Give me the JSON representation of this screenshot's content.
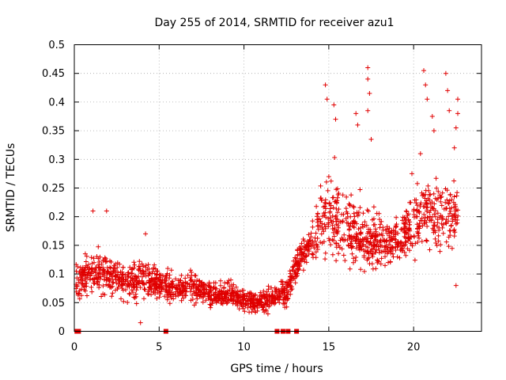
{
  "chart_data": {
    "type": "scatter",
    "title": "Day 255 of 2014, SRMTID for receiver azu1",
    "xlabel": "GPS time / hours",
    "ylabel": "SRMTID / TECUs",
    "xlim": [
      0,
      24
    ],
    "ylim": [
      0,
      0.5
    ],
    "xticks": [
      0,
      5,
      10,
      15,
      20
    ],
    "xtick_labels": [
      "0",
      "5",
      "10",
      "15",
      "20"
    ],
    "yticks": [
      0,
      0.05,
      0.1,
      0.15,
      0.2,
      0.25,
      0.3,
      0.35,
      0.4,
      0.45,
      0.5
    ],
    "ytick_labels": [
      "0",
      "0.05",
      "0.1",
      "0.15",
      "0.2",
      "0.25",
      "0.3",
      "0.35",
      "0.4",
      "0.45",
      "0.5"
    ],
    "grid": true,
    "marker": "+",
    "series": [
      {
        "name": "SRMTID",
        "color": "#e00000",
        "description": "dense scatter of SRMTID values across the day",
        "envelope": [
          {
            "x": 0.2,
            "median": 0.09,
            "spread": 0.04
          },
          {
            "x": 1.0,
            "median": 0.1,
            "spread": 0.045
          },
          {
            "x": 2.0,
            "median": 0.1,
            "spread": 0.04
          },
          {
            "x": 3.0,
            "median": 0.085,
            "spread": 0.035
          },
          {
            "x": 4.0,
            "median": 0.09,
            "spread": 0.04
          },
          {
            "x": 5.0,
            "median": 0.085,
            "spread": 0.035
          },
          {
            "x": 6.0,
            "median": 0.075,
            "spread": 0.03
          },
          {
            "x": 7.0,
            "median": 0.08,
            "spread": 0.035
          },
          {
            "x": 8.0,
            "median": 0.065,
            "spread": 0.025
          },
          {
            "x": 9.0,
            "median": 0.065,
            "spread": 0.025
          },
          {
            "x": 10.0,
            "median": 0.055,
            "spread": 0.025
          },
          {
            "x": 11.0,
            "median": 0.05,
            "spread": 0.02
          },
          {
            "x": 11.8,
            "median": 0.06,
            "spread": 0.025
          },
          {
            "x": 12.5,
            "median": 0.07,
            "spread": 0.03
          },
          {
            "x": 13.3,
            "median": 0.13,
            "spread": 0.035
          },
          {
            "x": 14.0,
            "median": 0.15,
            "spread": 0.045
          },
          {
            "x": 14.7,
            "median": 0.2,
            "spread": 0.09
          },
          {
            "x": 15.5,
            "median": 0.2,
            "spread": 0.09
          },
          {
            "x": 16.5,
            "median": 0.17,
            "spread": 0.07
          },
          {
            "x": 17.5,
            "median": 0.16,
            "spread": 0.07
          },
          {
            "x": 18.5,
            "median": 0.15,
            "spread": 0.05
          },
          {
            "x": 19.5,
            "median": 0.17,
            "spread": 0.06
          },
          {
            "x": 20.3,
            "median": 0.2,
            "spread": 0.08
          },
          {
            "x": 21.0,
            "median": 0.2,
            "spread": 0.09
          },
          {
            "x": 21.7,
            "median": 0.2,
            "spread": 0.09
          },
          {
            "x": 22.5,
            "median": 0.2,
            "spread": 0.07
          }
        ],
        "spikes": [
          {
            "x": 14.8,
            "y": 0.43
          },
          {
            "x": 14.9,
            "y": 0.405
          },
          {
            "x": 15.3,
            "y": 0.395
          },
          {
            "x": 15.4,
            "y": 0.37
          },
          {
            "x": 16.6,
            "y": 0.38
          },
          {
            "x": 16.7,
            "y": 0.36
          },
          {
            "x": 17.3,
            "y": 0.46
          },
          {
            "x": 17.3,
            "y": 0.44
          },
          {
            "x": 17.4,
            "y": 0.415
          },
          {
            "x": 17.3,
            "y": 0.385
          },
          {
            "x": 17.5,
            "y": 0.335
          },
          {
            "x": 20.6,
            "y": 0.455
          },
          {
            "x": 20.7,
            "y": 0.43
          },
          {
            "x": 20.8,
            "y": 0.405
          },
          {
            "x": 21.1,
            "y": 0.375
          },
          {
            "x": 21.2,
            "y": 0.35
          },
          {
            "x": 21.9,
            "y": 0.45
          },
          {
            "x": 22.0,
            "y": 0.42
          },
          {
            "x": 22.1,
            "y": 0.385
          },
          {
            "x": 22.6,
            "y": 0.405
          },
          {
            "x": 22.6,
            "y": 0.38
          },
          {
            "x": 22.5,
            "y": 0.355
          },
          {
            "x": 22.4,
            "y": 0.32
          },
          {
            "x": 20.4,
            "y": 0.31
          },
          {
            "x": 19.9,
            "y": 0.275
          },
          {
            "x": 1.1,
            "y": 0.21
          },
          {
            "x": 1.9,
            "y": 0.21
          },
          {
            "x": 4.2,
            "y": 0.17
          },
          {
            "x": 3.9,
            "y": 0.015
          },
          {
            "x": 22.5,
            "y": 0.08
          }
        ],
        "zero_markers": [
          0.15,
          0.25,
          5.4,
          11.95,
          12.3,
          12.6,
          13.1
        ]
      }
    ]
  }
}
